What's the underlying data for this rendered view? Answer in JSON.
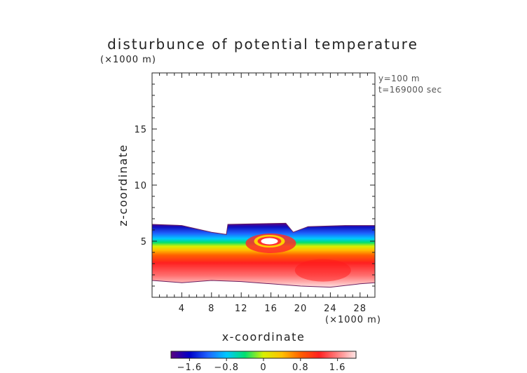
{
  "chart_data": {
    "type": "heatmap",
    "title": "disturbunce of potential temperature",
    "xlabel": "x-coordinate",
    "ylabel": "z-coordinate",
    "x_unit": "(×1000 m)",
    "z_unit": "(×1000 m)",
    "annotations": [
      "y=100 m",
      "t=169000 sec"
    ],
    "x_range": [
      0,
      30
    ],
    "z_range": [
      0,
      20
    ],
    "x_ticks": [
      4,
      8,
      12,
      16,
      20,
      24,
      28
    ],
    "z_ticks": [
      5,
      10,
      15
    ],
    "colorbar": {
      "range": [
        -2,
        2
      ],
      "tick_values": [
        -1.6,
        -0.8,
        0,
        0.8,
        1.6
      ],
      "tick_labels": [
        "−1.6",
        "−0.8",
        "0",
        "0.8",
        "1.6"
      ],
      "colors": [
        "#5a0080",
        "#0000c8",
        "#1e64ff",
        "#00c8ff",
        "#00e070",
        "#d8f000",
        "#ffc000",
        "#ff6000",
        "#ff2020",
        "#ff8080",
        "#ffe6e6"
      ]
    },
    "field_description_units": {
      "top_boundary_z": [
        [
          0,
          6.5
        ],
        [
          4,
          6.4
        ],
        [
          8,
          5.8
        ],
        [
          10,
          5.6
        ],
        [
          10.2,
          6.5
        ],
        [
          18,
          6.6
        ],
        [
          19,
          5.8
        ],
        [
          21,
          6.3
        ],
        [
          26,
          6.4
        ],
        [
          30,
          6.4
        ]
      ],
      "bottom_boundary_z": [
        [
          0,
          1.5
        ],
        [
          4,
          1.3
        ],
        [
          8,
          1.5
        ],
        [
          12,
          1.4
        ],
        [
          16,
          1.2
        ],
        [
          20,
          1.0
        ],
        [
          24,
          0.9
        ],
        [
          28,
          1.2
        ],
        [
          30,
          1.3
        ]
      ],
      "warm_bubble_center": [
        15.8,
        5.0
      ]
    }
  }
}
